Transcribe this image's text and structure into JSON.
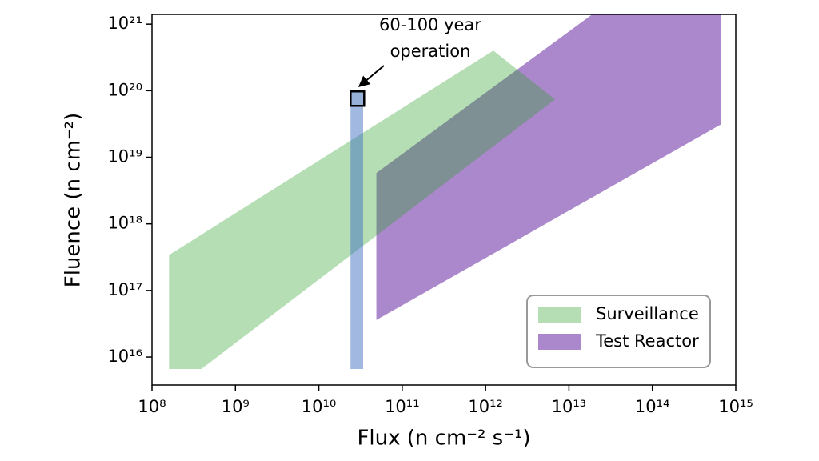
{
  "chart_data": {
    "type": "region",
    "xlabel": "Flux (n cm⁻² s⁻¹)",
    "ylabel": "Fluence (n cm⁻²)",
    "xscale": "log",
    "yscale": "log",
    "xlim": [
      100000000.0,
      1000000000000000.0
    ],
    "ylim": [
      3800000000000000.0,
      1.4e+21
    ],
    "xticks": [
      {
        "value": 100000000.0,
        "label": "10⁸"
      },
      {
        "value": 1000000000.0,
        "label": "10⁹"
      },
      {
        "value": 10000000000.0,
        "label": "10¹⁰"
      },
      {
        "value": 100000000000.0,
        "label": "10¹¹"
      },
      {
        "value": 1000000000000.0,
        "label": "10¹²"
      },
      {
        "value": 10000000000000.0,
        "label": "10¹³"
      },
      {
        "value": 100000000000000.0,
        "label": "10¹⁴"
      },
      {
        "value": 1000000000000000.0,
        "label": "10¹⁵"
      }
    ],
    "yticks": [
      {
        "value": 1e+16,
        "label": "10¹⁶"
      },
      {
        "value": 1e+17,
        "label": "10¹⁷"
      },
      {
        "value": 1e+18,
        "label": "10¹⁸"
      },
      {
        "value": 1e+19,
        "label": "10¹⁹"
      },
      {
        "value": 1e+20,
        "label": "10²⁰"
      },
      {
        "value": 1e+21,
        "label": "10²¹"
      }
    ],
    "series": [
      {
        "name": "Test Reactor",
        "color": "rgba(148,103,189,0.78)",
        "x": [
          49000000000.0,
          19000000000000.0,
          660000000000000.0,
          660000000000000.0,
          49000000000.0
        ],
        "values": [
          5.8e+18,
          1.4e+21,
          1.4e+21,
          3.1e+19,
          3.6e+16
        ]
      },
      {
        "name": "Surveillance",
        "color": "rgba(44,160,44,0.35)",
        "x": [
          160000000.0,
          1240000000000.0,
          6800000000000.0,
          390000000.0,
          160000000.0
        ],
        "values": [
          3.4e+17,
          4e+20,
          7.4e+19,
          6600000000000000.0,
          6600000000000000.0
        ]
      }
    ],
    "legend_order": [
      1,
      0
    ],
    "legend": "lower right",
    "operation_band": {
      "color": "rgba(68,114,196,0.5)",
      "x": [
        24000000000.0,
        34000000000.0,
        34000000000.0,
        24000000000.0
      ],
      "values": [
        6600000000000000.0,
        6600000000000000.0,
        7.2e+19,
        7.2e+19
      ]
    },
    "operation_point": {
      "color": "#97b0d8",
      "x": 29000000000.0,
      "value": 7.6e+19
    },
    "annotation": [
      "60-100 year",
      "operation"
    ]
  }
}
